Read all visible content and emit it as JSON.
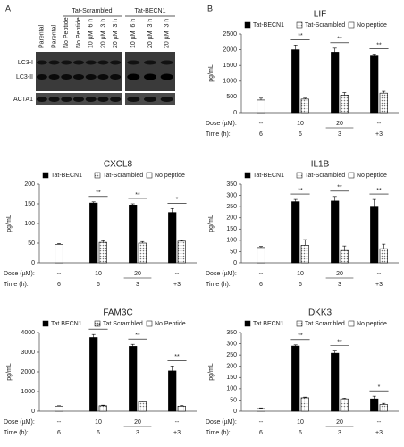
{
  "panel_labels": {
    "a": "A",
    "b": "B"
  },
  "panel_a": {
    "group_labels": [
      "Tat-Scrambled",
      "Tat-BECN1"
    ],
    "left_lanes": [
      "Parental",
      "Parental",
      "No Peptide",
      "No Peptide",
      "10 µM, 6 h",
      "20 µM, 3 h",
      "20 µM, 3 h"
    ],
    "right_lanes": [
      "10 µM, 6 h",
      "20 µM, 3 h",
      "20 µM, 3 h"
    ],
    "row_labels": [
      "LC3-I",
      "LC3-II",
      "ACTA1"
    ]
  },
  "chart_data": [
    {
      "type": "bar",
      "title": "LIF",
      "y_label": "pg/mL",
      "dose_label": "Dose (µM):",
      "time_label": "Time (h):",
      "categories": [
        "--",
        "10",
        "20",
        "--"
      ],
      "times": [
        "6",
        "6",
        "3",
        "+3"
      ],
      "ylim": [
        0,
        2500
      ],
      "yticks": [
        0,
        500,
        1000,
        1500,
        2000,
        2500
      ],
      "significance": [
        null,
        "**",
        "**",
        "**"
      ],
      "series": [
        {
          "name": "Tat-BECN1",
          "color": "#000000",
          "values": [
            null,
            2000,
            1920,
            1800
          ],
          "errors": [
            null,
            150,
            130,
            60
          ]
        },
        {
          "name": "Tat-Scrambled",
          "color": "#bfbfbf",
          "hatch": true,
          "values": [
            null,
            430,
            560,
            620
          ],
          "errors": [
            null,
            30,
            80,
            60
          ]
        },
        {
          "name": "No peptide",
          "color": "#ffffff",
          "values": [
            400,
            null,
            null,
            null
          ],
          "errors": [
            60,
            null,
            null,
            null
          ]
        }
      ]
    },
    {
      "type": "bar",
      "title": "CXCL8",
      "y_label": "pg/mL",
      "dose_label": "Dose (µM):",
      "time_label": "Time (h):",
      "categories": [
        "--",
        "10",
        "20",
        "--"
      ],
      "times": [
        "6",
        "6",
        "3",
        "+3"
      ],
      "ylim": [
        0,
        200
      ],
      "yticks": [
        0,
        50,
        100,
        150,
        200
      ],
      "significance": [
        null,
        "**",
        "**",
        "*"
      ],
      "series": [
        {
          "name": "Tat-BECN1",
          "color": "#000000",
          "values": [
            null,
            152,
            147,
            128
          ],
          "errors": [
            null,
            3,
            3,
            10
          ]
        },
        {
          "name": "Tat-Scrambled",
          "color": "#bfbfbf",
          "hatch": true,
          "values": [
            null,
            52,
            50,
            55
          ],
          "errors": [
            null,
            4,
            4,
            2
          ]
        },
        {
          "name": "No peptide",
          "color": "#ffffff",
          "values": [
            47,
            null,
            null,
            null
          ],
          "errors": [
            2,
            null,
            null,
            null
          ]
        }
      ]
    },
    {
      "type": "bar",
      "title": "IL1B",
      "y_label": "pg/mL",
      "dose_label": "Dose (µM):",
      "time_label": "Time (h):",
      "categories": [
        "--",
        "10",
        "20",
        "--"
      ],
      "times": [
        "6",
        "6",
        "3",
        "+3"
      ],
      "ylim": [
        0,
        350
      ],
      "yticks": [
        0,
        50,
        100,
        150,
        200,
        250,
        300,
        350
      ],
      "significance": [
        null,
        "**",
        "**",
        "**"
      ],
      "series": [
        {
          "name": "Tat-BECN1",
          "color": "#000000",
          "values": [
            null,
            272,
            275,
            252
          ],
          "errors": [
            null,
            10,
            20,
            30
          ]
        },
        {
          "name": "Tat-Scrambled",
          "color": "#bfbfbf",
          "hatch": true,
          "values": [
            null,
            78,
            55,
            63
          ],
          "errors": [
            null,
            25,
            20,
            20
          ]
        },
        {
          "name": "No peptide",
          "color": "#ffffff",
          "values": [
            68,
            null,
            null,
            null
          ],
          "errors": [
            5,
            null,
            null,
            null
          ]
        }
      ]
    },
    {
      "type": "bar",
      "title": "FAM3C",
      "y_label": "pg/mL",
      "dose_label": "Dose (µM):",
      "time_label": "Time (h):",
      "categories": [
        "--",
        "10",
        "20",
        "--"
      ],
      "times": [
        "6",
        "6",
        "3",
        "+3"
      ],
      "ylim": [
        0,
        4000
      ],
      "yticks": [
        0,
        1000,
        2000,
        3000,
        4000
      ],
      "significance": [
        null,
        "**",
        "**",
        "**"
      ],
      "series": [
        {
          "name": "Tat BECN1",
          "color": "#000000",
          "values": [
            null,
            3750,
            3300,
            2050
          ],
          "errors": [
            null,
            150,
            100,
            250
          ]
        },
        {
          "name": "Tat Scrambled",
          "color": "#bfbfbf",
          "hatch": true,
          "values": [
            null,
            280,
            480,
            260
          ],
          "errors": [
            null,
            30,
            40,
            30
          ]
        },
        {
          "name": "No Peptide",
          "color": "#ffffff",
          "values": [
            260,
            null,
            null,
            null
          ],
          "errors": [
            20,
            null,
            null,
            null
          ]
        }
      ]
    },
    {
      "type": "bar",
      "title": "DKK3",
      "y_label": "pg/mL",
      "dose_label": "Dose (µM):",
      "time_label": "Time (h):",
      "categories": [
        "--",
        "10",
        "20",
        "--"
      ],
      "times": [
        "6",
        "6",
        "3",
        "+3"
      ],
      "ylim": [
        0,
        350
      ],
      "yticks": [
        0,
        50,
        100,
        150,
        200,
        250,
        300,
        350
      ],
      "significance": [
        null,
        "**",
        "**",
        "*"
      ],
      "series": [
        {
          "name": "Tat BECN1",
          "color": "#000000",
          "values": [
            null,
            290,
            258,
            55
          ],
          "errors": [
            null,
            5,
            10,
            12
          ]
        },
        {
          "name": "Tat Scrambled",
          "color": "#bfbfbf",
          "hatch": true,
          "values": [
            null,
            60,
            55,
            30
          ],
          "errors": [
            null,
            3,
            3,
            5
          ]
        },
        {
          "name": "No peptide",
          "color": "#ffffff",
          "values": [
            12,
            null,
            null,
            null
          ],
          "errors": [
            3,
            null,
            null,
            null
          ]
        }
      ]
    }
  ]
}
